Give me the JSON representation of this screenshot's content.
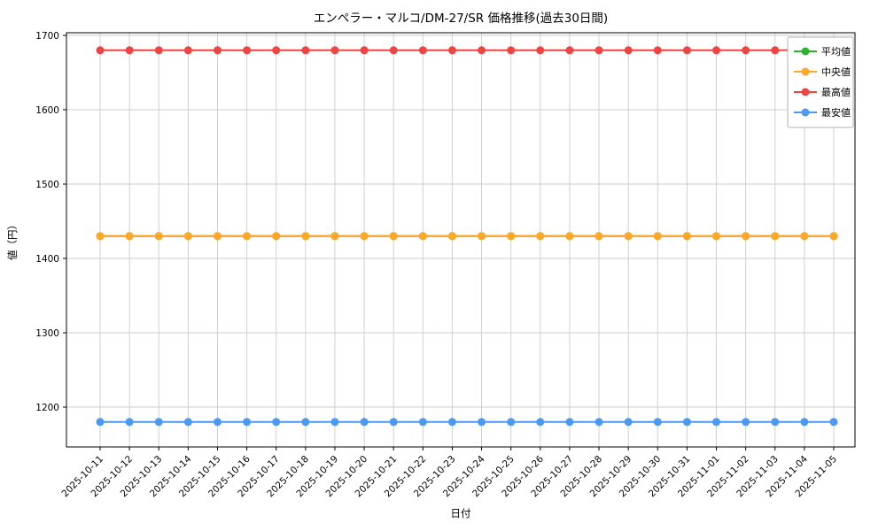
{
  "chart_data": {
    "type": "line",
    "title": "エンペラー・マルコ/DM-27/SR 価格推移(過去30日間)",
    "xlabel": "日付",
    "ylabel": "値（円）",
    "grid": true,
    "legend_position": "upper right",
    "yticks": [
      1200,
      1300,
      1400,
      1500,
      1600,
      1700
    ],
    "ylim": [
      1146,
      1704
    ],
    "x": [
      "2025-10-11",
      "2025-10-12",
      "2025-10-13",
      "2025-10-14",
      "2025-10-15",
      "2025-10-16",
      "2025-10-17",
      "2025-10-18",
      "2025-10-19",
      "2025-10-20",
      "2025-10-21",
      "2025-10-22",
      "2025-10-23",
      "2025-10-24",
      "2025-10-25",
      "2025-10-26",
      "2025-10-27",
      "2025-10-28",
      "2025-10-29",
      "2025-10-30",
      "2025-10-31",
      "2025-11-01",
      "2025-11-02",
      "2025-11-03",
      "2025-11-04",
      "2025-11-05"
    ],
    "series": [
      {
        "name": "平均値",
        "color": "#2cb52c",
        "values": [
          1430,
          1430,
          1430,
          1430,
          1430,
          1430,
          1430,
          1430,
          1430,
          1430,
          1430,
          1430,
          1430,
          1430,
          1430,
          1430,
          1430,
          1430,
          1430,
          1430,
          1430,
          1430,
          1430,
          1430,
          1430,
          1430
        ]
      },
      {
        "name": "中央値",
        "color": "#ffa726",
        "values": [
          1430,
          1430,
          1430,
          1430,
          1430,
          1430,
          1430,
          1430,
          1430,
          1430,
          1430,
          1430,
          1430,
          1430,
          1430,
          1430,
          1430,
          1430,
          1430,
          1430,
          1430,
          1430,
          1430,
          1430,
          1430,
          1430
        ]
      },
      {
        "name": "最高値",
        "color": "#f04343",
        "values": [
          1680,
          1680,
          1680,
          1680,
          1680,
          1680,
          1680,
          1680,
          1680,
          1680,
          1680,
          1680,
          1680,
          1680,
          1680,
          1680,
          1680,
          1680,
          1680,
          1680,
          1680,
          1680,
          1680,
          1680,
          1680,
          1680
        ]
      },
      {
        "name": "最安値",
        "color": "#4a9af5",
        "values": [
          1180,
          1180,
          1180,
          1180,
          1180,
          1180,
          1180,
          1180,
          1180,
          1180,
          1180,
          1180,
          1180,
          1180,
          1180,
          1180,
          1180,
          1180,
          1180,
          1180,
          1180,
          1180,
          1180,
          1180,
          1180,
          1180
        ]
      }
    ]
  }
}
